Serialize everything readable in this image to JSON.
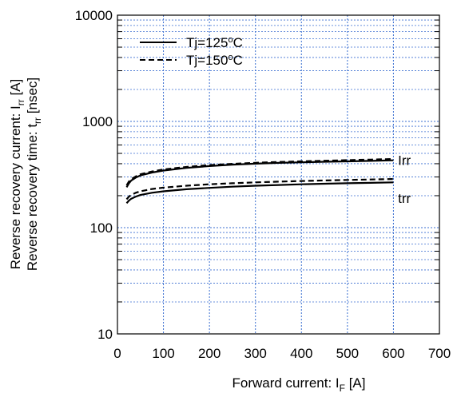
{
  "chart_data": {
    "type": "line",
    "xlabel": {
      "main": "Forward current: I",
      "sub": "F",
      "unit": " [A]"
    },
    "ylabel": {
      "line1": {
        "main": "Reverse recovery current: I",
        "sub": "rr",
        "unit": " [A]"
      },
      "line2": {
        "main": "Reverse recovery time: t",
        "sub": "rr",
        "unit": " [nsec]"
      }
    },
    "xlim": [
      0,
      700
    ],
    "ylim": [
      10,
      10000
    ],
    "yscale": "log",
    "grid": true,
    "legend_position": "top-left",
    "x_ticks": [
      "0",
      "100",
      "200",
      "300",
      "400",
      "500",
      "600",
      "700"
    ],
    "y_ticks": [
      "10",
      "100",
      "1000",
      "10000"
    ],
    "legend": [
      {
        "label": "Tj=125",
        "sup": "o",
        "suffix": "C",
        "style": "solid"
      },
      {
        "label": "Tj=150",
        "sup": "o",
        "suffix": "C",
        "style": "dashed"
      }
    ],
    "annotations": [
      {
        "text": "Irr",
        "x": 610,
        "y": 430
      },
      {
        "text": "trr",
        "x": 610,
        "y": 190
      }
    ],
    "series": [
      {
        "group": "Irr",
        "tj": 125,
        "style": "solid",
        "x": [
          20,
          25,
          30,
          40,
          50,
          75,
          100,
          150,
          200,
          250,
          300,
          350,
          400,
          450,
          500,
          550,
          600
        ],
        "y": [
          240,
          262,
          278,
          296,
          310,
          330,
          345,
          365,
          380,
          392,
          400,
          407,
          412,
          417,
          421,
          425,
          430
        ]
      },
      {
        "group": "Irr",
        "tj": 150,
        "style": "dashed",
        "x": [
          20,
          25,
          30,
          40,
          50,
          75,
          100,
          150,
          200,
          250,
          300,
          350,
          400,
          450,
          500,
          550,
          600
        ],
        "y": [
          250,
          272,
          286,
          304,
          318,
          338,
          353,
          373,
          388,
          399,
          408,
          415,
          421,
          427,
          432,
          437,
          443
        ]
      },
      {
        "group": "trr",
        "tj": 125,
        "style": "solid",
        "x": [
          20,
          25,
          30,
          40,
          50,
          75,
          100,
          150,
          200,
          250,
          300,
          350,
          400,
          450,
          500,
          550,
          600
        ],
        "y": [
          170,
          180,
          187,
          196,
          203,
          213,
          220,
          230,
          237,
          243,
          248,
          252,
          256,
          259,
          262,
          264,
          267
        ]
      },
      {
        "group": "trr",
        "tj": 150,
        "style": "dashed",
        "x": [
          20,
          25,
          30,
          40,
          50,
          75,
          100,
          150,
          200,
          250,
          300,
          350,
          400,
          450,
          500,
          550,
          600
        ],
        "y": [
          185,
          196,
          203,
          213,
          220,
          231,
          238,
          248,
          256,
          262,
          267,
          271,
          275,
          278,
          281,
          284,
          287
        ]
      }
    ]
  }
}
